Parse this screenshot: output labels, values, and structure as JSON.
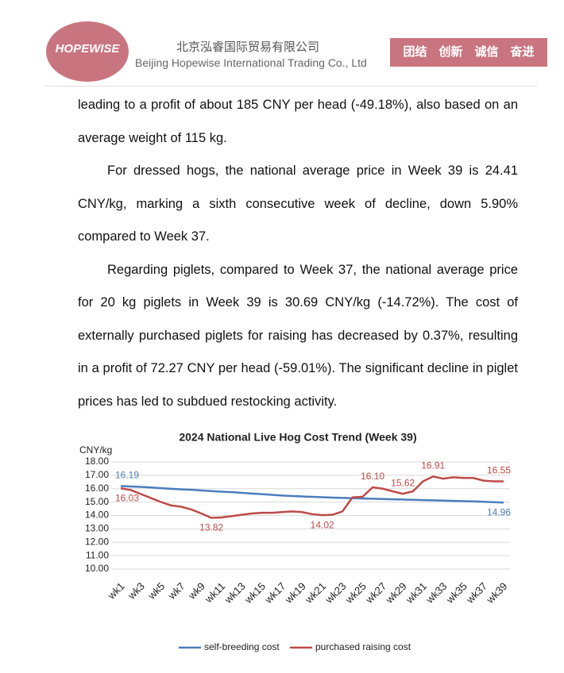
{
  "header": {
    "logo_text": "HOPEWISE",
    "company_cn": "北京泓睿国际贸易有限公司",
    "company_en": "Beijing Hopewise International Trading Co., Ltd",
    "motto": "团结　创新　诚信　奋进"
  },
  "paragraphs": [
    "leading to a profit of about 185 CNY per head (-49.18%), also based on an average weight of 115 kg.",
    "For dressed hogs, the national average price in Week 39 is 24.41 CNY/kg, marking a sixth consecutive week of decline, down 5.90% compared to Week 37.",
    "Regarding piglets, compared to Week 37, the national average price for 20 kg piglets in Week 39 is 30.69 CNY/kg (-14.72%). The cost of externally purchased piglets for raising has decreased by 0.37%, resulting in a profit of 72.27 CNY per head (-59.01%). The significant decline in piglet prices has led to subdued restocking activity."
  ],
  "chart_data": {
    "type": "line",
    "title": "2024 National Live Hog Cost Trend (Week 39)",
    "y_label": "CNY/kg",
    "categories": [
      "wk1",
      null,
      "wk3",
      null,
      "wk5",
      null,
      "wk7",
      null,
      "wk9",
      null,
      "wk11",
      null,
      "wk13",
      null,
      "wk15",
      null,
      "wk17",
      null,
      "wk19",
      null,
      "wk21",
      null,
      "wk23",
      null,
      "wk25",
      null,
      "wk27",
      null,
      "wk29",
      null,
      "wk31",
      null,
      "wk33",
      null,
      "wk35",
      null,
      "wk37",
      null,
      "wk39"
    ],
    "series": [
      {
        "name": "self-breeding cost",
        "color": "#4a7ebb",
        "values": [
          16.19,
          16.16,
          16.13,
          16.09,
          16.04,
          15.99,
          15.95,
          15.92,
          15.87,
          15.82,
          15.78,
          15.74,
          15.69,
          15.64,
          15.59,
          15.54,
          15.49,
          15.45,
          15.42,
          15.39,
          15.36,
          15.33,
          15.31,
          15.29,
          15.27,
          15.25,
          15.23,
          15.21,
          15.19,
          15.17,
          15.15,
          15.13,
          15.11,
          15.09,
          15.07,
          15.05,
          15.02,
          14.99,
          14.96
        ],
        "value_labels": [
          "16.19",
          null,
          null,
          null,
          null,
          null,
          null,
          null,
          null,
          null,
          null,
          null,
          null,
          null,
          null,
          null,
          null,
          null,
          null,
          null,
          null,
          null,
          null,
          null,
          null,
          null,
          null,
          null,
          null,
          null,
          null,
          null,
          null,
          null,
          null,
          null,
          null,
          null,
          "14.96"
        ]
      },
      {
        "name": "purchased raising cost",
        "color": "#be4b48",
        "values": [
          16.03,
          15.9,
          15.6,
          15.3,
          15.0,
          14.75,
          14.65,
          14.45,
          14.15,
          13.82,
          13.85,
          13.95,
          14.05,
          14.15,
          14.2,
          14.2,
          14.25,
          14.3,
          14.25,
          14.1,
          14.02,
          14.05,
          14.3,
          15.35,
          15.4,
          16.1,
          16.0,
          15.8,
          15.62,
          15.8,
          16.55,
          16.91,
          16.75,
          16.85,
          16.8,
          16.8,
          16.6,
          16.55,
          16.55
        ],
        "value_labels": [
          "16.03",
          null,
          null,
          null,
          null,
          null,
          null,
          null,
          null,
          "13.82",
          null,
          null,
          null,
          null,
          null,
          null,
          null,
          null,
          null,
          null,
          "14.02",
          null,
          null,
          null,
          null,
          "16.10",
          null,
          null,
          "15.62",
          null,
          null,
          "16.91",
          null,
          null,
          null,
          null,
          null,
          null,
          "16.55"
        ]
      }
    ],
    "ylim": [
      10,
      18
    ],
    "yticks": [
      {
        "value": 10,
        "label": "10.00"
      },
      {
        "value": 11,
        "label": "11.00"
      },
      {
        "value": 12,
        "label": "12.00"
      },
      {
        "value": 13,
        "label": "13.00"
      },
      {
        "value": 14,
        "label": "14.00"
      },
      {
        "value": 15,
        "label": "15.00"
      },
      {
        "value": 16,
        "label": "16.00"
      },
      {
        "value": 17,
        "label": "17.00"
      },
      {
        "value": 18,
        "label": "18.00"
      }
    ],
    "grid": true,
    "legend": "bottom"
  }
}
